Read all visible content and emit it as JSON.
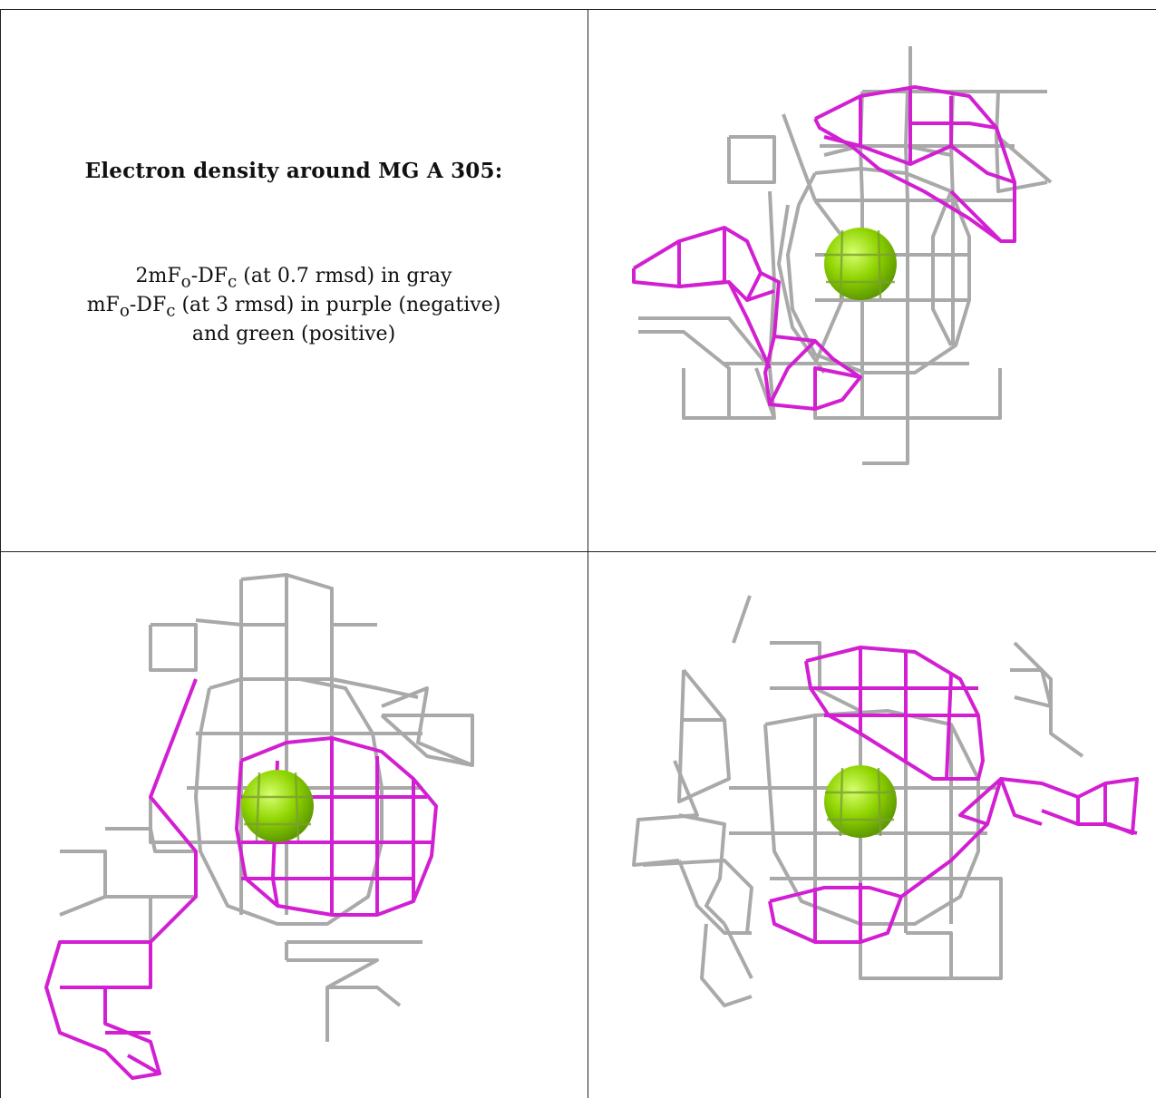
{
  "caption": {
    "title": "Electron density around MG A 305:",
    "line1_prefix": "2mF",
    "line1_sub1": "o",
    "line1_mid": "-DF",
    "line1_sub2": "c",
    "line1_suffix": " (at 0.7 rmsd) in gray",
    "line2_prefix": "mF",
    "line2_sub1": "o",
    "line2_mid": "-DF",
    "line2_sub2": "c",
    "line2_suffix": " (at 3 rmsd) in purple (negative)",
    "line3": "and green (positive)"
  },
  "colors": {
    "gray_mesh": "#a9a9a9",
    "purple_mesh": "#d21fd2",
    "mg_sphere": "#8fd400",
    "border": "#222222"
  },
  "panels": [
    {
      "id": "view-1",
      "atom": "MG A 305"
    },
    {
      "id": "view-2",
      "atom": "MG A 305"
    },
    {
      "id": "view-3",
      "atom": "MG A 305"
    }
  ]
}
